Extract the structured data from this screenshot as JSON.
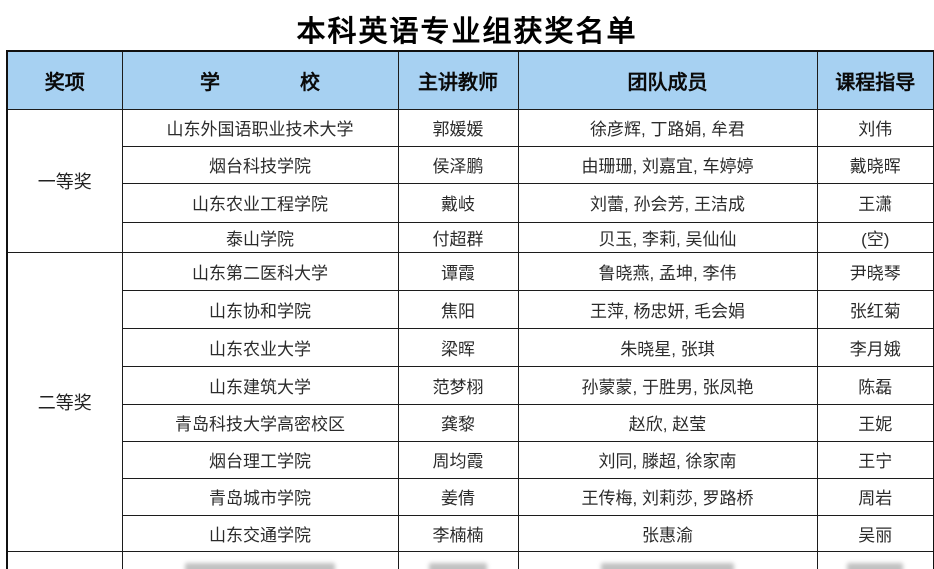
{
  "title": "本科英语专业组获奖名单",
  "colors": {
    "header_bg": "#a7d1f2",
    "highlight_border": "#25a9e0",
    "grid_border": "#1c1c1c",
    "text": "#2b2b2b"
  },
  "table": {
    "headers": {
      "award": "奖项",
      "school": "学　　　　校",
      "teacher": "主讲教师",
      "members": "团队成员",
      "advisor": "课程指导"
    },
    "groups": [
      {
        "award": "一等奖",
        "rows": [
          {
            "school": "山东外国语职业技术大学",
            "teacher": "郭媛媛",
            "members": "徐彦辉, 丁路娟, 牟君",
            "advisor": "刘伟",
            "highlighted": false
          },
          {
            "school": "烟台科技学院",
            "teacher": "侯泽鹏",
            "members": "由珊珊, 刘嘉宜, 车婷婷",
            "advisor": "戴晓晖",
            "highlighted": false
          },
          {
            "school": "山东农业工程学院",
            "teacher": "戴岐",
            "members": "刘蕾, 孙会芳, 王洁成",
            "advisor": "王潇",
            "highlighted": true
          },
          {
            "school": "泰山学院",
            "teacher": "付超群",
            "members": "贝玉, 李莉, 吴仙仙",
            "advisor": "(空)",
            "highlighted": false
          }
        ]
      },
      {
        "award": "二等奖",
        "rows": [
          {
            "school": "山东第二医科大学",
            "teacher": "谭霞",
            "members": "鲁晓燕, 孟坤, 李伟",
            "advisor": "尹晓琴",
            "highlighted": false
          },
          {
            "school": "山东协和学院",
            "teacher": "焦阳",
            "members": "王萍, 杨忠妍, 毛会娟",
            "advisor": "张红菊",
            "highlighted": false
          },
          {
            "school": "山东农业大学",
            "teacher": "梁晖",
            "members": "朱晓星, 张琪",
            "advisor": "李月娥",
            "highlighted": false
          },
          {
            "school": "山东建筑大学",
            "teacher": "范梦栩",
            "members": "孙蒙蒙, 于胜男, 张凤艳",
            "advisor": "陈磊",
            "highlighted": false
          },
          {
            "school": "青岛科技大学高密校区",
            "teacher": "龚黎",
            "members": "赵欣, 赵莹",
            "advisor": "王妮",
            "highlighted": false
          },
          {
            "school": "烟台理工学院",
            "teacher": "周均霞",
            "members": "刘同, 滕超, 徐家南",
            "advisor": "王宁",
            "highlighted": false
          },
          {
            "school": "青岛城市学院",
            "teacher": "姜倩",
            "members": "王传梅, 刘莉莎, 罗路桥",
            "advisor": "周岩",
            "highlighted": false
          },
          {
            "school": "山东交通学院",
            "teacher": "李楠楠",
            "members": "张惠渝",
            "advisor": "吴丽",
            "highlighted": false
          }
        ]
      }
    ],
    "partial_row_visible": true
  }
}
